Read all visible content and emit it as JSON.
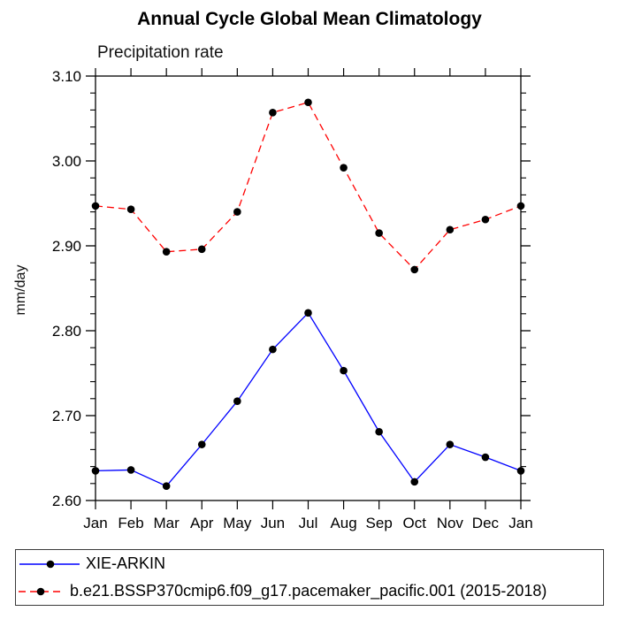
{
  "page": {
    "background_color": "#ffffff",
    "frame_color": "#000000"
  },
  "chart_data": {
    "type": "line",
    "title": "Annual Cycle Global Mean Climatology",
    "subtitle": "Precipitation rate",
    "ylabel": "mm/day",
    "xlabel": "",
    "categories": [
      "Jan",
      "Feb",
      "Mar",
      "Apr",
      "May",
      "Jun",
      "Jul",
      "Aug",
      "Sep",
      "Oct",
      "Nov",
      "Dec",
      "Jan"
    ],
    "ylim": [
      2.6,
      3.1
    ],
    "y_major_ticks": [
      2.6,
      2.7,
      2.8,
      2.9,
      3.0,
      3.1
    ],
    "y_tick_labels": [
      "2.60",
      "2.70",
      "2.80",
      "2.90",
      "3.00",
      "3.10"
    ],
    "y_minor_step": 0.02,
    "grid": false,
    "legend_position": "bottom",
    "series": [
      {
        "name": "XIE-ARKIN",
        "color": "#0000ff",
        "line_style": "solid",
        "marker": "filled-circle",
        "marker_color": "#000000",
        "values": [
          2.635,
          2.636,
          2.617,
          2.666,
          2.717,
          2.778,
          2.821,
          2.753,
          2.681,
          2.622,
          2.666,
          2.651,
          2.635
        ]
      },
      {
        "name": "b.e21.BSSP370cmip6.f09_g17.pacemaker_pacific.001 (2015-2018)",
        "color": "#ff0000",
        "line_style": "dashed",
        "marker": "filled-circle",
        "marker_color": "#000000",
        "values": [
          2.947,
          2.943,
          2.893,
          2.896,
          2.94,
          3.057,
          3.069,
          2.992,
          2.915,
          2.872,
          2.919,
          2.931,
          2.947
        ]
      }
    ]
  }
}
